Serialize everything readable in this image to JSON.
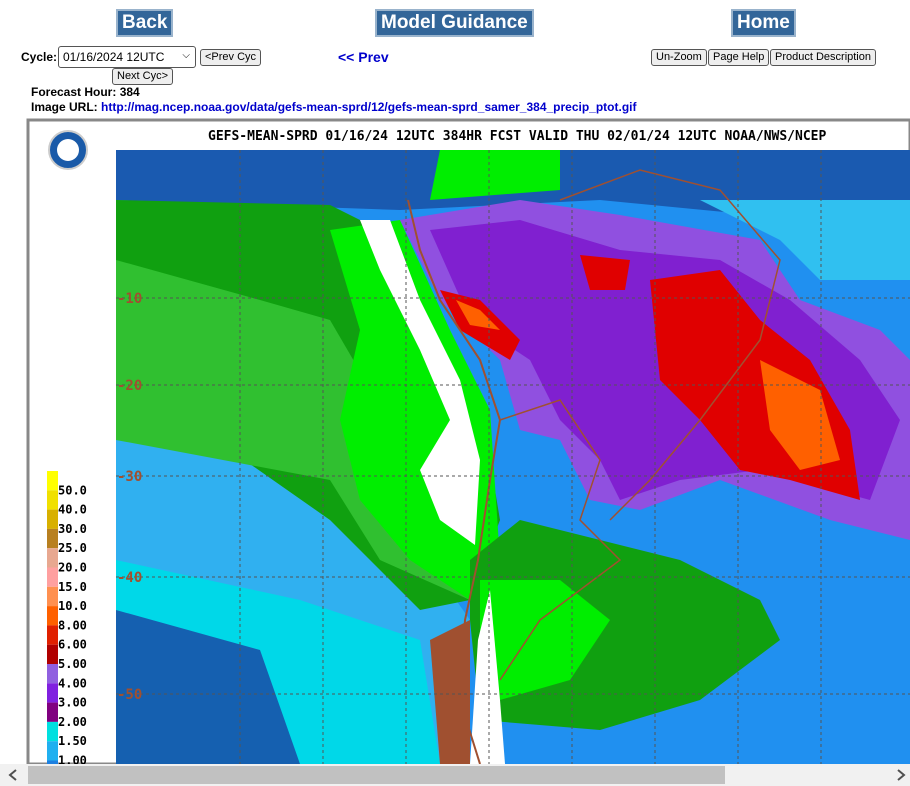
{
  "nav": {
    "back": "Back",
    "model_guidance": "Model Guidance",
    "home": "Home"
  },
  "controls": {
    "cycle_label": "Cycle:",
    "cycle_value": "01/16/2024 12UTC",
    "prev_cycle": "<Prev Cyc",
    "next_cycle": "Next Cyc>",
    "prev": "<< Prev",
    "unzoom": "Un-Zoom",
    "page_help": "Page Help",
    "product_description": "Product Description"
  },
  "info": {
    "forecast_hour_label": "Forecast Hour:",
    "forecast_hour": 384,
    "image_url_label": "Image URL:",
    "image_url": "http://mag.ncep.noaa.gov/data/gefs-mean-sprd/12/gefs-mean-sprd_samer_384_precip_ptot.gif"
  },
  "map": {
    "title": "GEFS-MEAN-SPRD 01/16/24 12UTC 384HR FCST VALID THU 02/01/24 12UTC NOAA/NWS/NCEP",
    "lat_labels": [
      "-10",
      "-20",
      "-30",
      "-40",
      "-50"
    ],
    "legend": [
      "50.0",
      "40.0",
      "30.0",
      "25.0",
      "20.0",
      "15.0",
      "10.0",
      "8.00",
      "6.00",
      "5.00",
      "4.00",
      "3.00",
      "2.00",
      "1.50",
      "1.00"
    ]
  }
}
